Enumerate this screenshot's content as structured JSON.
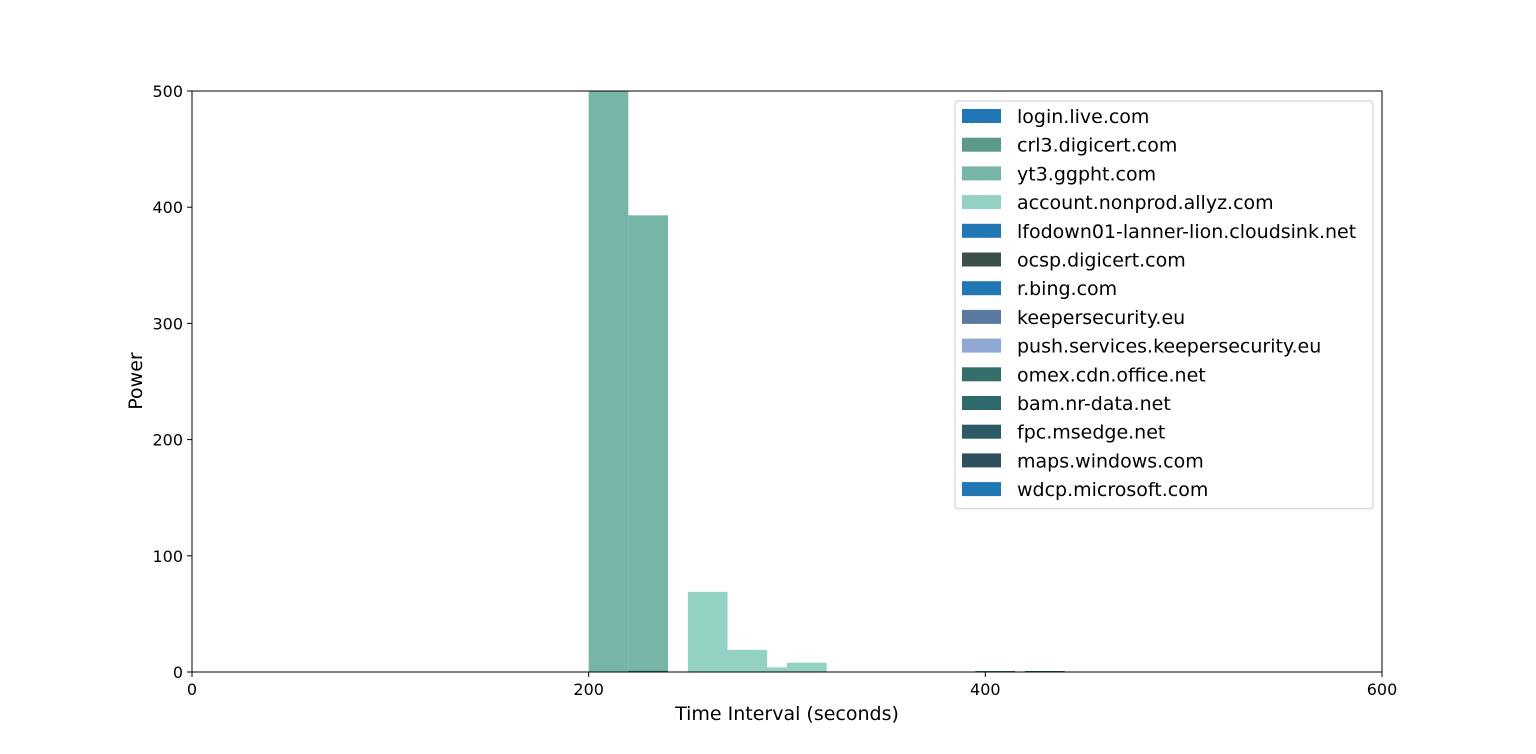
{
  "chart_data": {
    "type": "bar",
    "title": "",
    "xlabel": "Time Interval (seconds)",
    "ylabel": "Power",
    "xlim": [
      0,
      600
    ],
    "ylim": [
      0,
      500
    ],
    "xticks": [
      0,
      200,
      400,
      600
    ],
    "yticks": [
      0,
      100,
      200,
      300,
      400,
      500
    ],
    "grid": false,
    "legend_position": "top-right",
    "bin_width": 20,
    "series": [
      {
        "name": "login.live.com",
        "color": "#2077b4",
        "bars": []
      },
      {
        "name": "crl3.digicert.com",
        "color": "#5b9a8b",
        "bars": []
      },
      {
        "name": "yt3.ggpht.com",
        "color": "#76b5a8",
        "bars": [
          {
            "x": 200,
            "value": 500
          },
          {
            "x": 220,
            "value": 393
          }
        ]
      },
      {
        "name": "account.nonprod.allyz.com",
        "color": "#93d1c3",
        "bars": [
          {
            "x": 250,
            "value": 69
          },
          {
            "x": 270,
            "value": 19
          },
          {
            "x": 282,
            "value": 4
          },
          {
            "x": 300,
            "value": 8
          }
        ]
      },
      {
        "name": "lfodown01-lanner-lion.cloudsink.net",
        "color": "#2077b4",
        "bars": []
      },
      {
        "name": "ocsp.digicert.com",
        "color": "#3b4f47",
        "bars": []
      },
      {
        "name": "r.bing.com",
        "color": "#2077b4",
        "bars": []
      },
      {
        "name": "keepersecurity.eu",
        "color": "#5b7aa1",
        "bars": []
      },
      {
        "name": "push.services.keepersecurity.eu",
        "color": "#8ea8d3",
        "bars": []
      },
      {
        "name": "omex.cdn.office.net",
        "color": "#336e6a",
        "bars": [
          {
            "x": 220,
            "value": 1
          },
          {
            "x": 395,
            "value": 0.6
          }
        ]
      },
      {
        "name": "bam.nr-data.net",
        "color": "#2e6a6b",
        "bars": []
      },
      {
        "name": "fpc.msedge.net",
        "color": "#2c5a66",
        "bars": [
          {
            "x": 420,
            "value": 0.5
          }
        ]
      },
      {
        "name": "maps.windows.com",
        "color": "#2f4f5f",
        "bars": []
      },
      {
        "name": "wdcp.microsoft.com",
        "color": "#2077b4",
        "bars": []
      }
    ]
  }
}
